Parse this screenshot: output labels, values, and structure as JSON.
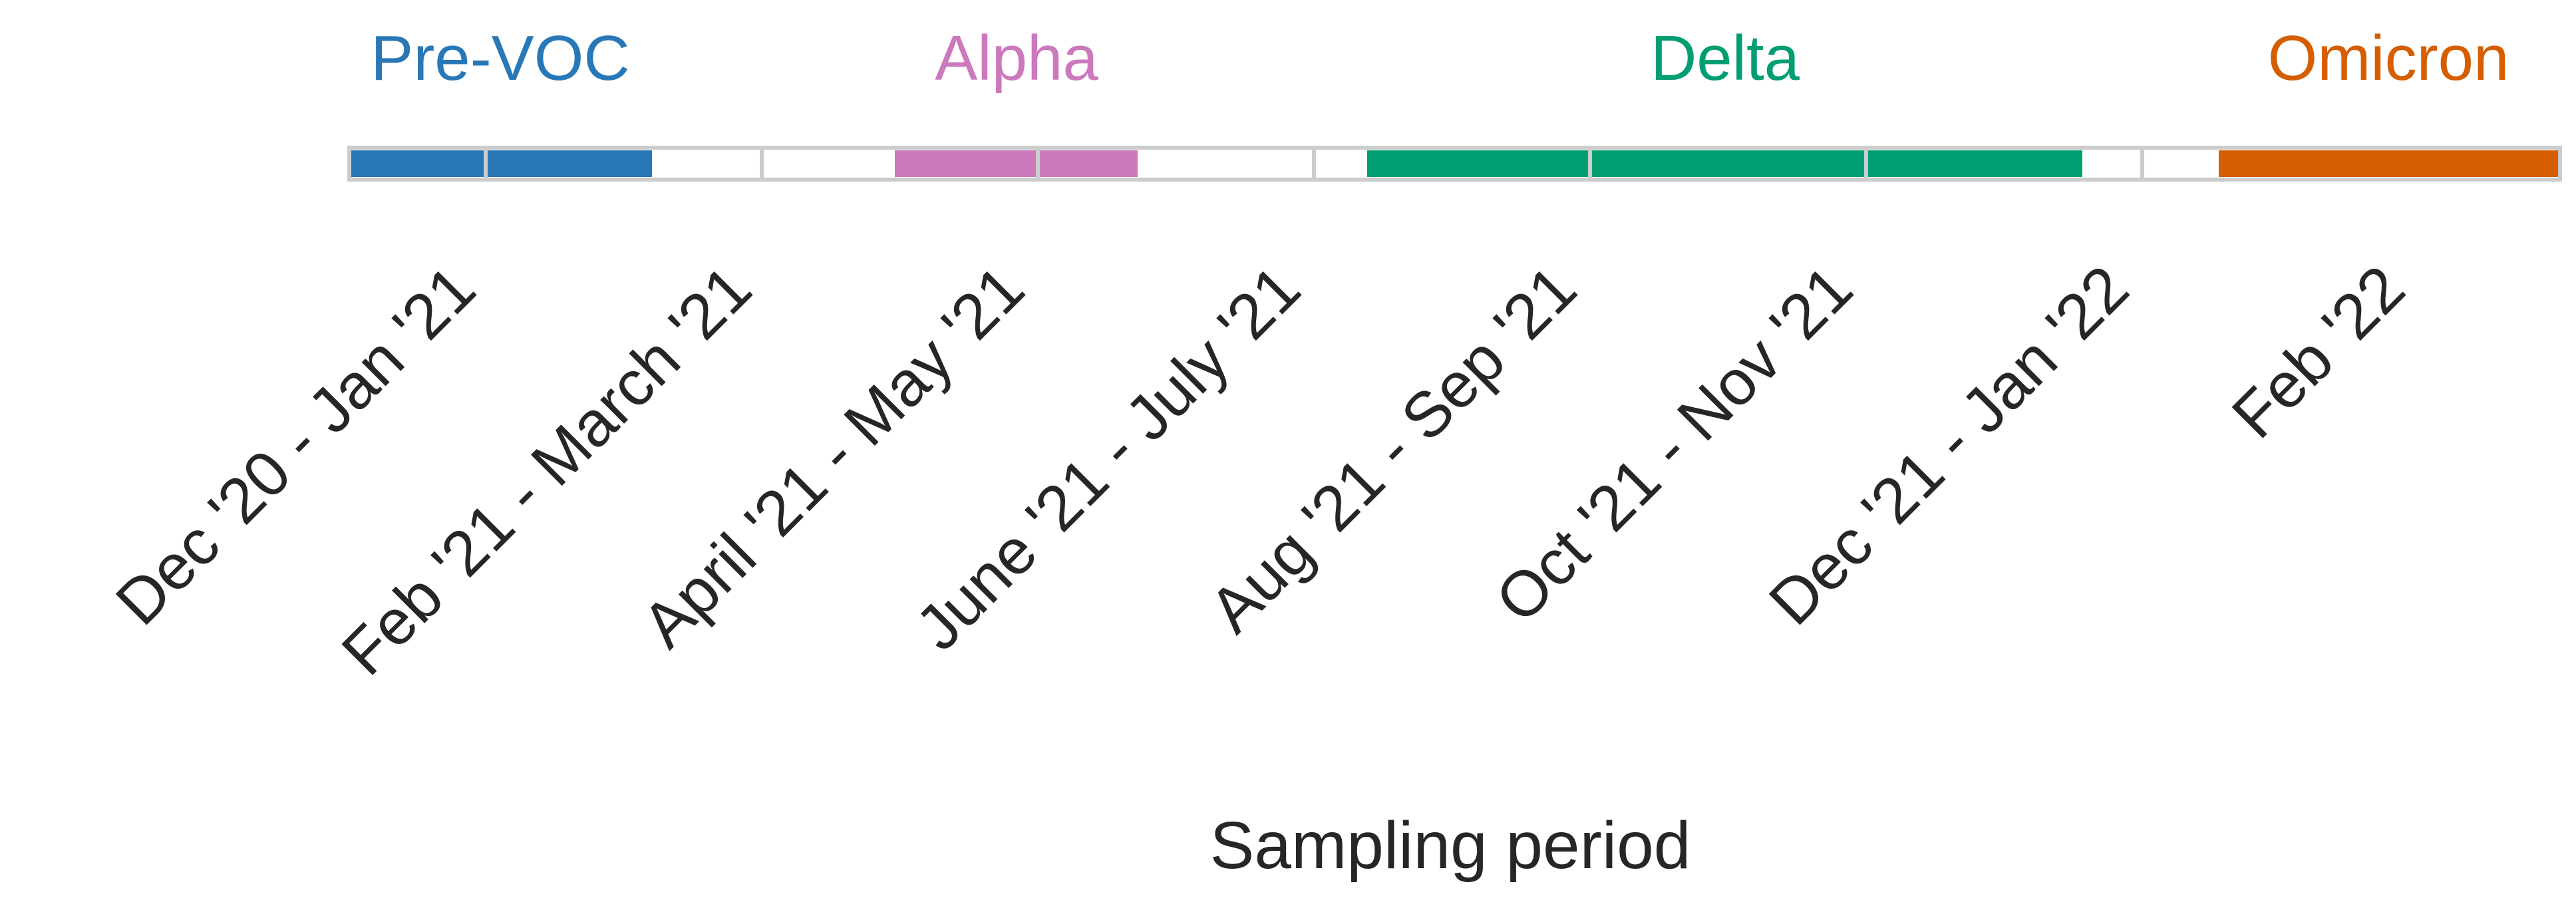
{
  "chart_data": {
    "type": "timeline",
    "xlabel": "Sampling period",
    "periods": [
      "Dec '20 - Jan '21",
      "Feb '21 - March '21",
      "April '21 - May '21",
      "June '21 - July '21",
      "Aug '21 - Sep '21",
      "Oct '21 - Nov '21",
      "Dec '21 - Jan '22",
      "Feb '22"
    ],
    "x_range": [
      "Dec '20",
      "Feb '22"
    ],
    "variants": [
      {
        "name": "Pre-VOC",
        "color": "#2878b8",
        "start": "Dec '20",
        "end": "mid-March '21"
      },
      {
        "name": "Alpha",
        "color": "#cc78bc",
        "start": "mid-April '21",
        "end": "late May '21"
      },
      {
        "name": "Delta",
        "color": "#029e73",
        "start": "early Aug '21",
        "end": "mid-Jan '22"
      },
      {
        "name": "Omicron",
        "color": "#d55e00",
        "start": "early Feb '22",
        "end": "Feb '22"
      }
    ],
    "grid": true,
    "legend": "none"
  }
}
